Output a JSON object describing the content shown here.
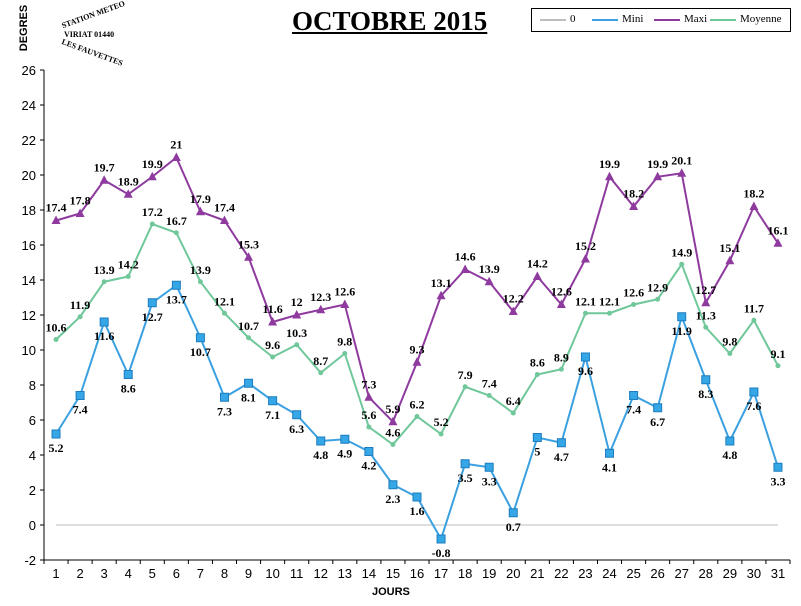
{
  "title": "OCTOBRE 2015",
  "stamp": {
    "line1": "STATION METEO",
    "line2": "VIRIAT 01440",
    "line3": "LES FAUVETTES"
  },
  "legend": [
    {
      "name": "0",
      "color": "#bdbdbd",
      "marker": "none"
    },
    {
      "name": "Mini",
      "color": "#3aa0e0",
      "marker": "square"
    },
    {
      "name": "Maxi",
      "color": "#8e3a9e",
      "marker": "triangle"
    },
    {
      "name": "Moyenne",
      "color": "#6fc79a",
      "marker": "dot"
    }
  ],
  "chart_data": {
    "type": "line",
    "title": "OCTOBRE 2015",
    "xlabel": "JOURS",
    "ylabel": "DEGRES",
    "ylim": [
      -2,
      26
    ],
    "yticks": [
      -2,
      0,
      2,
      4,
      6,
      8,
      10,
      12,
      14,
      16,
      18,
      20,
      22,
      24,
      26
    ],
    "x": [
      1,
      2,
      3,
      4,
      5,
      6,
      7,
      8,
      9,
      10,
      11,
      12,
      13,
      14,
      15,
      16,
      17,
      18,
      19,
      20,
      21,
      22,
      23,
      24,
      25,
      26,
      27,
      28,
      29,
      30,
      31
    ],
    "grid": false,
    "legend_position": "top-right",
    "series": [
      {
        "name": "0",
        "values": [
          0,
          0,
          0,
          0,
          0,
          0,
          0,
          0,
          0,
          0,
          0,
          0,
          0,
          0,
          0,
          0,
          0,
          0,
          0,
          0,
          0,
          0,
          0,
          0,
          0,
          0,
          0,
          0,
          0,
          0,
          0
        ],
        "color": "#bdbdbd",
        "labels": false
      },
      {
        "name": "Mini",
        "values": [
          5.2,
          7.4,
          11.6,
          8.6,
          12.7,
          13.7,
          10.7,
          7.3,
          8.1,
          7.1,
          6.3,
          4.8,
          4.9,
          4.2,
          2.3,
          1.6,
          -0.8,
          3.5,
          3.3,
          0.7,
          5,
          4.7,
          9.6,
          4.1,
          7.4,
          6.7,
          11.9,
          8.3,
          4.8,
          7.6,
          3.3
        ],
        "color": "#3aa0e0",
        "labels": true
      },
      {
        "name": "Maxi",
        "values": [
          17.4,
          17.8,
          19.7,
          18.9,
          19.9,
          21,
          17.9,
          17.4,
          15.3,
          11.6,
          12,
          12.3,
          12.6,
          7.3,
          5.9,
          9.3,
          13.1,
          14.6,
          13.9,
          12.2,
          14.2,
          12.6,
          15.2,
          19.9,
          18.2,
          19.9,
          20.1,
          12.7,
          15.1,
          18.2,
          16.1
        ],
        "color": "#8e3a9e",
        "labels": true
      },
      {
        "name": "Moyenne",
        "values": [
          10.6,
          11.9,
          13.9,
          14.2,
          17.2,
          16.7,
          13.9,
          12.1,
          10.7,
          9.6,
          10.3,
          8.7,
          9.8,
          5.6,
          4.6,
          6.2,
          5.2,
          7.9,
          7.4,
          6.4,
          8.6,
          8.9,
          12.1,
          12.1,
          12.6,
          12.9,
          14.9,
          11.3,
          9.8,
          11.7,
          9.1
        ],
        "color": "#6fc79a",
        "labels": true
      }
    ]
  }
}
